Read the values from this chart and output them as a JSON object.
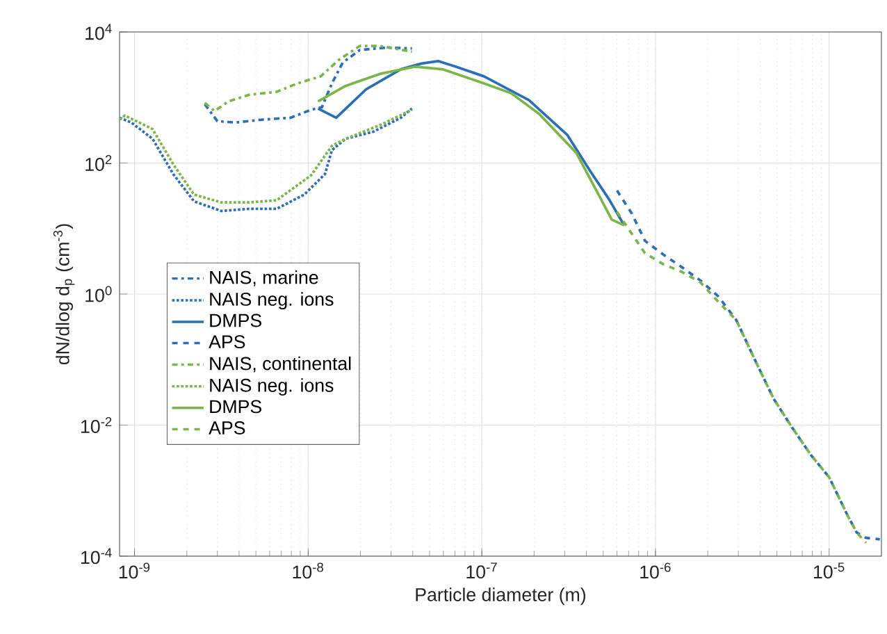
{
  "chart_data": {
    "type": "line",
    "xlabel": "Particle diameter (m)",
    "ylabel": "dN/dlog d$_{p}$ (cm$^{-3}$)",
    "log": "xy",
    "grid": true,
    "legend": "left",
    "xlim": [
      8.2e-10,
      2e-05
    ],
    "ylim": [
      0.0001,
      10000.0
    ],
    "xticks": [
      {
        "value": 1e-09,
        "label": "10$^{-9}$"
      },
      {
        "value": 1e-08,
        "label": "10$^{-8}$"
      },
      {
        "value": 1e-07,
        "label": "10$^{-7}$"
      },
      {
        "value": 1e-06,
        "label": "10$^{-6}$"
      },
      {
        "value": 1e-05,
        "label": "10$^{-5}$"
      }
    ],
    "yticks": [
      {
        "value": 0.0001,
        "label": "10$^{-4}$"
      },
      {
        "value": 0.01,
        "label": "10$^{-2}$"
      },
      {
        "value": 1,
        "label": "10$^{0}$"
      },
      {
        "value": 100,
        "label": "10$^{2}$"
      },
      {
        "value": 10000,
        "label": "10$^{4}$"
      }
    ],
    "series": [
      {
        "name": "NAIS, marine",
        "color": "#2a6fb8",
        "line_style": "dashdot",
        "x": [
          2.54e-09,
          3e-09,
          3.8e-09,
          5.48e-09,
          7.91e-09,
          1.04e-08,
          1.2e-08,
          1.37e-08,
          1.58e-08,
          1.98e-08,
          2.85e-08,
          3.96e-08
        ],
        "values": [
          790,
          435,
          415,
          460,
          490,
          650,
          710,
          1640,
          3400,
          5300,
          5800,
          5600
        ]
      },
      {
        "name": "NAIS neg. ions",
        "color": "#2a6fb8",
        "line_style": "dotted",
        "x": [
          8.2e-10,
          9.6e-10,
          1.27e-09,
          1.67e-09,
          2.2e-09,
          3.17e-09,
          4.57e-09,
          6.59e-09,
          9.5e-09,
          1.25e-08,
          1.37e-08,
          1.64e-08,
          2.37e-08,
          3.42e-08,
          3.96e-08
        ],
        "values": [
          490,
          415,
          234,
          68,
          26,
          18.5,
          20,
          20,
          33,
          68,
          157,
          234,
          300,
          490,
          680
        ]
      },
      {
        "name": "DMPS",
        "color": "#2a6fb8",
        "line_style": "solid",
        "x": [
          1.14e-08,
          1.45e-08,
          2.16e-08,
          3.42e-08,
          4.5e-08,
          5.6e-08,
          7.1e-08,
          1.03e-07,
          1.87e-07,
          3.1e-07,
          4.2e-07,
          5.4e-07,
          6.6e-07
        ],
        "values": [
          680,
          490,
          1340,
          2700,
          3300,
          3600,
          2950,
          2100,
          910,
          270,
          76,
          28,
          11.2
        ]
      },
      {
        "name": "APS",
        "color": "#2a6fb8",
        "line_style": "dashed",
        "x": [
          6e-07,
          7.3e-07,
          8.7e-07,
          1.11e-06,
          1.41e-06,
          1.82e-06,
          2.3e-06,
          2.92e-06,
          3.78e-06,
          4.8e-06,
          6.1e-06,
          7.85e-06,
          1e-05,
          1.27e-05,
          1.44e-05,
          1.63e-05,
          1.96e-05
        ],
        "values": [
          38,
          17,
          6.5,
          4.0,
          2.6,
          1.6,
          0.92,
          0.4,
          0.093,
          0.025,
          0.0093,
          0.0035,
          0.0016,
          0.00043,
          0.00023,
          0.00019,
          0.00018
        ]
      },
      {
        "name": "NAIS, continental",
        "color": "#7ab648",
        "line_style": "dashdot",
        "x": [
          2.54e-09,
          2.89e-09,
          3.47e-09,
          4.57e-09,
          6.59e-09,
          8.67e-09,
          1.18e-08,
          1.5e-08,
          1.98e-08,
          2.6e-08,
          3.96e-08
        ],
        "values": [
          830,
          620,
          870,
          1100,
          1220,
          1640,
          2100,
          3750,
          6100,
          6100,
          5000
        ]
      },
      {
        "name": "NAIS neg. ions",
        "color": "#7ab648",
        "line_style": "dotted",
        "x": [
          8.2e-10,
          8.8e-10,
          1.27e-09,
          1.67e-09,
          2.2e-09,
          3.17e-09,
          4.57e-09,
          6.59e-09,
          1.04e-08,
          1.37e-08,
          1.64e-08,
          2.6e-08,
          3.96e-08
        ],
        "values": [
          460,
          530,
          330,
          96,
          33,
          25,
          25,
          27,
          65,
          183,
          234,
          380,
          650
        ]
      },
      {
        "name": "DMPS",
        "color": "#7ab648",
        "line_style": "solid",
        "x": [
          1.14e-08,
          1.64e-08,
          2.6e-08,
          4.11e-08,
          5.93e-08,
          1.03e-07,
          1.48e-07,
          2.14e-07,
          3.5e-07,
          4.7e-07,
          5.6e-07,
          6.6e-07
        ],
        "values": [
          870,
          1500,
          2300,
          2950,
          2700,
          1640,
          1160,
          560,
          143,
          33,
          13.7,
          11.2
        ]
      },
      {
        "name": "APS",
        "color": "#7ab648",
        "line_style": "dashed",
        "x": [
          6e-07,
          8.7e-07,
          1.11e-06,
          1.41e-06,
          1.82e-06,
          2.3e-06,
          2.92e-06,
          3.78e-06,
          4.8e-06,
          6.1e-06,
          7.85e-06,
          1e-05,
          1.27e-05,
          1.44e-05,
          1.63e-05
        ],
        "values": [
          18,
          4.2,
          2.85,
          2.2,
          1.5,
          0.76,
          0.4,
          0.093,
          0.025,
          0.0093,
          0.0035,
          0.0016,
          0.00043,
          0.00023,
          0.00016
        ]
      }
    ]
  }
}
